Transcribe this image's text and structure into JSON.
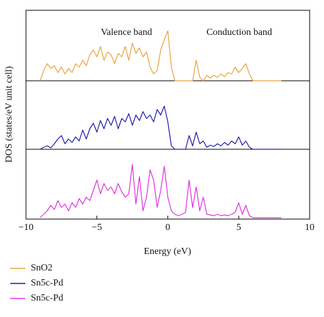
{
  "chart_data": {
    "type": "line",
    "xlabel": "Energy (eV)",
    "ylabel": "DOS (states/eV unit cell)",
    "annotations": [
      "Valence band",
      "Conduction band"
    ],
    "xlim": [
      -10,
      10
    ],
    "xticks": [
      {
        "value": -10,
        "label": "−10"
      },
      {
        "value": -5,
        "label": "−5"
      },
      0,
      5,
      10
    ],
    "ylim": [
      0,
      100
    ],
    "x": [
      -9,
      -8.75,
      -8.5,
      -8.25,
      -8,
      -7.75,
      -7.5,
      -7.25,
      -7,
      -6.75,
      -6.5,
      -6.25,
      -6,
      -5.75,
      -5.5,
      -5.25,
      -5,
      -4.75,
      -4.5,
      -4.25,
      -4,
      -3.75,
      -3.5,
      -3.25,
      -3,
      -2.75,
      -2.5,
      -2.25,
      -2,
      -1.75,
      -1.5,
      -1.25,
      -1,
      -0.75,
      -0.5,
      -0.25,
      0,
      0.25,
      0.5,
      0.75,
      1,
      1.25,
      1.5,
      1.75,
      2,
      2.25,
      2.5,
      2.75,
      3,
      3.25,
      3.5,
      3.75,
      4,
      4.25,
      4.5,
      4.75,
      5,
      5.25,
      5.5,
      5.75,
      6,
      6.25,
      6.5,
      6.75,
      7,
      7.25,
      7.5,
      7.75,
      8
    ],
    "series": [
      {
        "name": "SnO2",
        "color": "#e8a33d",
        "values": [
          0,
          15,
          25,
          18,
          22,
          12,
          20,
          10,
          18,
          12,
          25,
          20,
          30,
          22,
          38,
          45,
          35,
          50,
          30,
          42,
          38,
          25,
          40,
          35,
          50,
          30,
          55,
          40,
          48,
          35,
          42,
          20,
          10,
          15,
          45,
          60,
          73,
          20,
          0,
          0,
          0,
          0,
          0,
          0,
          30,
          5,
          0,
          8,
          4,
          8,
          5,
          10,
          6,
          12,
          10,
          20,
          12,
          18,
          25,
          10,
          0,
          0,
          0,
          0,
          0,
          0,
          0,
          0,
          0
        ]
      },
      {
        "name": "Sn5c-Pd",
        "color": "#1a1aa6",
        "values": [
          0,
          3,
          5,
          2,
          8,
          15,
          20,
          8,
          15,
          10,
          18,
          12,
          28,
          15,
          30,
          38,
          25,
          42,
          30,
          45,
          35,
          48,
          30,
          45,
          40,
          52,
          35,
          50,
          42,
          55,
          45,
          50,
          40,
          58,
          50,
          63,
          40,
          5,
          0,
          0,
          0,
          0,
          20,
          5,
          25,
          8,
          12,
          3,
          6,
          4,
          8,
          5,
          10,
          6,
          12,
          8,
          18,
          6,
          12,
          3,
          0,
          0,
          0,
          0,
          0,
          0,
          0,
          0,
          0
        ]
      },
      {
        "name": "Sn5c-Pd",
        "color": "#e030e0",
        "values": [
          0,
          5,
          10,
          18,
          12,
          25,
          15,
          20,
          10,
          22,
          15,
          28,
          20,
          30,
          25,
          40,
          55,
          35,
          50,
          40,
          45,
          35,
          50,
          38,
          30,
          35,
          78,
          20,
          60,
          10,
          30,
          70,
          55,
          15,
          40,
          75,
          30,
          10,
          5,
          3,
          5,
          8,
          55,
          15,
          45,
          10,
          30,
          5,
          4,
          3,
          5,
          3,
          4,
          3,
          5,
          8,
          22,
          5,
          18,
          3,
          0,
          0,
          0,
          0,
          0,
          0,
          0,
          0,
          0
        ]
      }
    ]
  }
}
